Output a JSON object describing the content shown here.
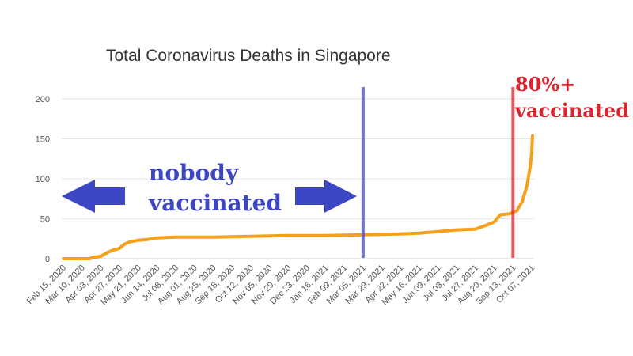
{
  "chart_data": {
    "type": "line",
    "title": "Total Coronavirus Deaths in Singapore",
    "xlabel": "",
    "ylabel": "",
    "ylim": [
      0,
      200
    ],
    "yticks": [
      0,
      50,
      100,
      150,
      200
    ],
    "grid": true,
    "xticks": [
      "Feb 15, 2020",
      "Mar 10, 2020",
      "Apr 03, 2020",
      "Apr 27, 2020",
      "May 21, 2020",
      "Jun 14, 2020",
      "Jul 08, 2020",
      "Aug 01, 2020",
      "Aug 25, 2020",
      "Sep 18, 2020",
      "Oct 12, 2020",
      "Nov 05, 2020",
      "Nov 29, 2020",
      "Dec 23, 2020",
      "Jan 16, 2021",
      "Feb 09, 2021",
      "Mar 05, 2021",
      "Mar 29, 2021",
      "Apr 22, 2021",
      "May 16, 2021",
      "Jun 09, 2021",
      "Jul 03, 2021",
      "Jul 27, 2021",
      "Aug 20, 2021",
      "Sep 13, 2021",
      "Oct 07, 2021"
    ],
    "series": [
      {
        "color": "#f5a01a",
        "points": [
          [
            "Feb 15, 2020",
            0
          ],
          [
            "Mar 20, 2020",
            0
          ],
          [
            "Mar 25, 2020",
            2
          ],
          [
            "Apr 03, 2020",
            3
          ],
          [
            "Apr 12, 2020",
            8
          ],
          [
            "Apr 20, 2020",
            11
          ],
          [
            "Apr 27, 2020",
            13
          ],
          [
            "May 03, 2020",
            18
          ],
          [
            "May 10, 2020",
            21
          ],
          [
            "May 21, 2020",
            23
          ],
          [
            "Jun 01, 2020",
            24
          ],
          [
            "Jun 14, 2020",
            26
          ],
          [
            "Jul 08, 2020",
            27
          ],
          [
            "Aug 25, 2020",
            27
          ],
          [
            "Oct 12, 2020",
            28
          ],
          [
            "Nov 29, 2020",
            29
          ],
          [
            "Jan 16, 2021",
            29
          ],
          [
            "Mar 05, 2021",
            30
          ],
          [
            "Apr 22, 2021",
            31
          ],
          [
            "May 16, 2021",
            32
          ],
          [
            "Jun 09, 2021",
            34
          ],
          [
            "Jul 03, 2021",
            36
          ],
          [
            "Jul 27, 2021",
            37
          ],
          [
            "Aug 10, 2021",
            42
          ],
          [
            "Aug 20, 2021",
            46
          ],
          [
            "Aug 28, 2021",
            55
          ],
          [
            "Sep 08, 2021",
            56
          ],
          [
            "Sep 18, 2021",
            60
          ],
          [
            "Sep 25, 2021",
            72
          ],
          [
            "Oct 01, 2021",
            92
          ],
          [
            "Oct 05, 2021",
            115
          ],
          [
            "Oct 07, 2021",
            133
          ],
          [
            "Oct 08, 2021",
            154
          ]
        ]
      }
    ],
    "annotations": {
      "nobody_line1": "nobody",
      "nobody_line2": "vaccinated",
      "vaccinated_line1": "80%+",
      "vaccinated_line2": "vaccinated",
      "blue_marker_date": "Mar 05, 2021",
      "red_marker_date": "Sep 13, 2021",
      "blue_color": "#3d47c4",
      "red_color": "#d8252f"
    }
  }
}
